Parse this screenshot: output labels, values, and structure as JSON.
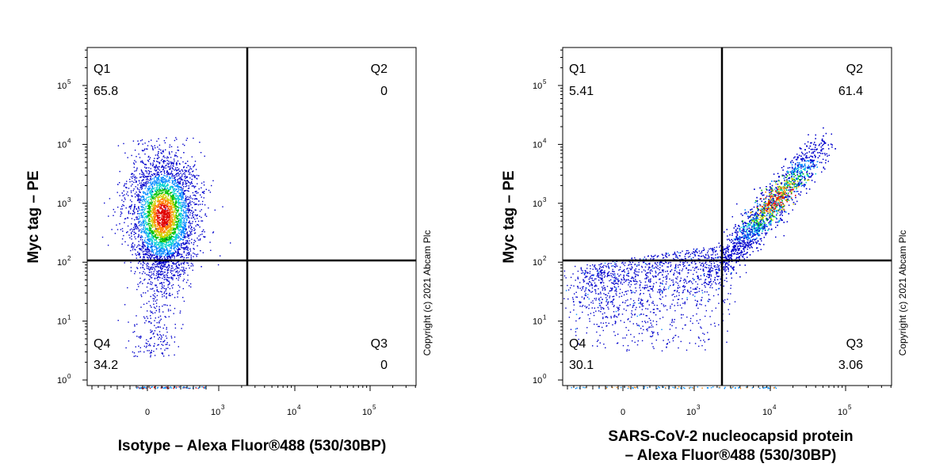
{
  "chart_data": [
    {
      "type": "scatter",
      "plot_style": "density-pseudocolor",
      "xlabel_lines": [
        "Isotype – Alexa Fluor®488 (530/30BP)"
      ],
      "ylabel": "Myc tag – PE",
      "x_scale": "biexponential",
      "y_scale": "log",
      "x_ticks": [
        {
          "base": "0",
          "exp": ""
        },
        {
          "base": "10",
          "exp": "3"
        },
        {
          "base": "10",
          "exp": "4"
        },
        {
          "base": "10",
          "exp": "5"
        }
      ],
      "y_ticks": [
        {
          "base": "10",
          "exp": "0"
        },
        {
          "base": "10",
          "exp": "1"
        },
        {
          "base": "10",
          "exp": "2"
        },
        {
          "base": "10",
          "exp": "3"
        },
        {
          "base": "10",
          "exp": "4"
        },
        {
          "base": "10",
          "exp": "5"
        }
      ],
      "quadrants": {
        "Q1": {
          "label": "Q1",
          "value": "65.8"
        },
        "Q2": {
          "label": "Q2",
          "value": "0"
        },
        "Q3": {
          "label": "Q3",
          "value": "0"
        },
        "Q4": {
          "label": "Q4",
          "value": "34.2"
        }
      },
      "populations": [
        {
          "x_center": 150,
          "log_y_center": 2.7,
          "log_y_spread": 0.7,
          "x_spread": 90
        }
      ],
      "density_colors": [
        "#0000cc",
        "#0088ff",
        "#00d0d0",
        "#00c000",
        "#d0d000",
        "#ff8000",
        "#e00000"
      ],
      "copyright": "Copyright (c) 2021 Abcam Plc"
    },
    {
      "type": "scatter",
      "plot_style": "density-pseudocolor",
      "xlabel_lines": [
        "SARS-CoV-2 nucleocapsid protein",
        "– Alexa Fluor®488 (530/30BP)"
      ],
      "ylabel": "Myc tag – PE",
      "x_scale": "biexponential",
      "y_scale": "log",
      "x_ticks": [
        {
          "base": "0",
          "exp": ""
        },
        {
          "base": "10",
          "exp": "3"
        },
        {
          "base": "10",
          "exp": "4"
        },
        {
          "base": "10",
          "exp": "5"
        }
      ],
      "y_ticks": [
        {
          "base": "10",
          "exp": "0"
        },
        {
          "base": "10",
          "exp": "1"
        },
        {
          "base": "10",
          "exp": "2"
        },
        {
          "base": "10",
          "exp": "3"
        },
        {
          "base": "10",
          "exp": "4"
        },
        {
          "base": "10",
          "exp": "5"
        }
      ],
      "quadrants": {
        "Q1": {
          "label": "Q1",
          "value": "5.41"
        },
        "Q2": {
          "label": "Q2",
          "value": "61.4"
        },
        "Q3": {
          "label": "Q3",
          "value": "3.06"
        },
        "Q4": {
          "label": "Q4",
          "value": "30.1"
        }
      },
      "populations": [
        {
          "shape": "diagonal",
          "log_x_from": 3.5,
          "log_x_to": 4.6,
          "log_y_from": 2.2,
          "log_y_to": 3.9
        },
        {
          "shape": "scatter",
          "x_from": 0,
          "log_x_to": 3.4,
          "log_y_from": 0.5,
          "log_y_to": 2.3
        }
      ],
      "density_colors": [
        "#0000cc",
        "#0088ff",
        "#00d0d0",
        "#00c000",
        "#d0d000",
        "#ff8000",
        "#e00000"
      ],
      "copyright": "Copyright (c) 2021 Abcam Plc"
    }
  ]
}
